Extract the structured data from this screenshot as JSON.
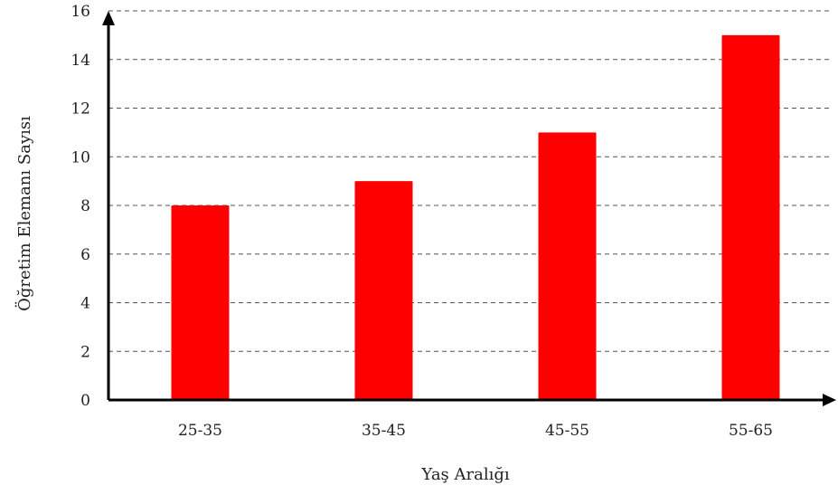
{
  "chart_data": {
    "type": "bar",
    "categories": [
      "25-35",
      "35-45",
      "45-55",
      "55-65"
    ],
    "values": [
      8,
      9,
      11,
      15
    ],
    "xlabel": "Yaş Aralığı",
    "ylabel": "Öğretim Elemanı Sayısı",
    "ylim": [
      0,
      16
    ],
    "yticks": [
      0,
      2,
      4,
      6,
      8,
      10,
      12,
      14,
      16
    ],
    "grid": true,
    "grid_style": "dashed",
    "legend": false,
    "colors": {
      "bar": "#ff0000",
      "axis": "#000000",
      "grid": "#555555"
    }
  }
}
